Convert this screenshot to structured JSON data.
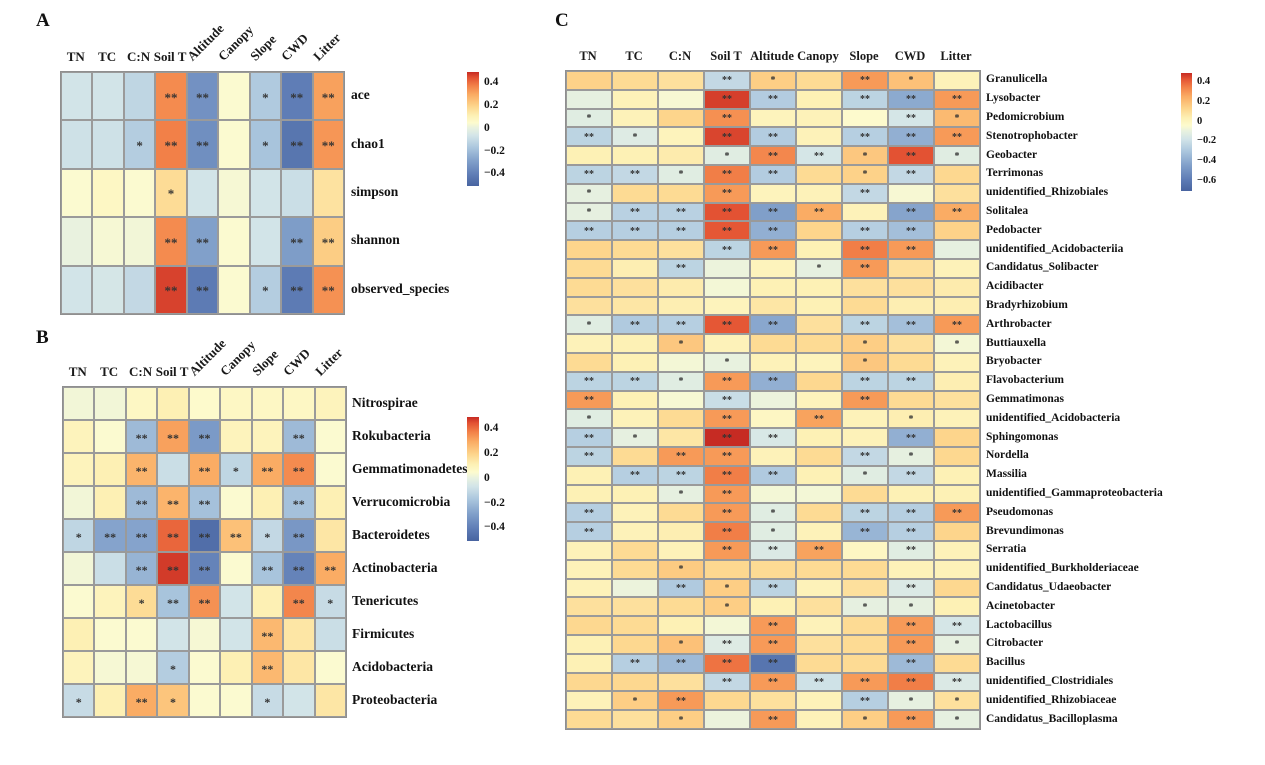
{
  "figure": {
    "background": "#ffffff",
    "grid_line_color": "#9a9a9a",
    "star_color": "#333333",
    "palette_stops": [
      [
        0.0,
        "#4864a0"
      ],
      [
        0.1,
        "#5f7db6"
      ],
      [
        0.22,
        "#81a0ca"
      ],
      [
        0.34,
        "#acc7de"
      ],
      [
        0.44,
        "#d2e4e8"
      ],
      [
        0.51,
        "#e9f2df"
      ],
      [
        0.555,
        "#fdfbce"
      ],
      [
        0.62,
        "#fdf0b4"
      ],
      [
        0.7,
        "#fdd58c"
      ],
      [
        0.8,
        "#faac64"
      ],
      [
        0.88,
        "#f28048"
      ],
      [
        0.95,
        "#e35233"
      ],
      [
        1.0,
        "#c62b23"
      ]
    ]
  },
  "chart_data": [
    {
      "type": "heatmap",
      "panel": "A",
      "columns": [
        "TN",
        "TC",
        "C:N",
        "Soil T",
        "Altitude",
        "Canopy",
        "Slope",
        "CWD",
        "Litter"
      ],
      "rows": [
        "ace",
        "chao1",
        "simpson",
        "shannon",
        "observed_species"
      ],
      "values": [
        [
          -0.06,
          -0.06,
          -0.11,
          0.36,
          -0.33,
          0.05,
          -0.15,
          -0.4,
          0.32
        ],
        [
          -0.07,
          -0.07,
          -0.14,
          0.38,
          -0.34,
          0.05,
          -0.17,
          -0.43,
          0.34
        ],
        [
          0.05,
          0.08,
          0.05,
          0.18,
          -0.06,
          0.04,
          -0.06,
          -0.08,
          0.16
        ],
        [
          0.01,
          0.04,
          0.03,
          0.36,
          -0.28,
          0.05,
          -0.06,
          -0.29,
          0.22
        ],
        [
          -0.06,
          -0.05,
          -0.1,
          0.47,
          -0.41,
          0.05,
          -0.14,
          -0.41,
          0.35
        ]
      ],
      "sig": [
        [
          "",
          "",
          "",
          "**",
          "**",
          "",
          "*",
          "**",
          "**"
        ],
        [
          "",
          "",
          "*",
          "**",
          "**",
          "",
          "*",
          "**",
          "**"
        ],
        [
          "",
          "",
          "",
          "*",
          "",
          "",
          "",
          "",
          ""
        ],
        [
          "",
          "",
          "",
          "**",
          "**",
          "",
          "",
          "**",
          "**"
        ],
        [
          "",
          "",
          "",
          "**",
          "**",
          "",
          "*",
          "**",
          "**"
        ]
      ],
      "colorbar": {
        "ticks": [
          "0.4",
          "0.2",
          "0",
          "−0.2",
          "−0.4"
        ],
        "tick_values": [
          0.4,
          0.2,
          0,
          -0.2,
          -0.4
        ],
        "domain": [
          -0.5,
          0.5
        ]
      }
    },
    {
      "type": "heatmap",
      "panel": "B",
      "columns": [
        "TN",
        "TC",
        "C:N",
        "Soil T",
        "Altitude",
        "Canopy",
        "Slope",
        "CWD",
        "Litter"
      ],
      "rows": [
        "Nitrospirae",
        "Rokubacteria",
        "Gemmatimonadetes",
        "Verrucomicrobia",
        "Bacteroidetes",
        "Actinobacteria",
        "Tenericutes",
        "Firmicutes",
        "Acidobacteria",
        "Proteobacteria"
      ],
      "values": [
        [
          0.03,
          0.03,
          0.08,
          0.12,
          0.06,
          0.08,
          0.08,
          0.08,
          0.1
        ],
        [
          0.1,
          0.05,
          -0.2,
          0.32,
          -0.3,
          0.1,
          0.1,
          -0.2,
          0.05
        ],
        [
          0.1,
          0.12,
          0.28,
          -0.08,
          0.3,
          -0.11,
          0.3,
          0.36,
          0.05
        ],
        [
          0.03,
          0.12,
          -0.2,
          0.28,
          -0.18,
          0.05,
          0.12,
          -0.18,
          0.12
        ],
        [
          -0.11,
          -0.27,
          -0.27,
          0.42,
          -0.46,
          0.25,
          -0.1,
          -0.31,
          0.15
        ],
        [
          0.03,
          -0.08,
          -0.22,
          0.48,
          -0.38,
          0.05,
          -0.17,
          -0.38,
          0.3
        ],
        [
          0.05,
          0.1,
          0.18,
          -0.17,
          0.35,
          -0.06,
          0.12,
          0.37,
          -0.09
        ],
        [
          0.12,
          0.05,
          0.05,
          -0.06,
          0.04,
          -0.06,
          0.27,
          0.15,
          -0.08
        ],
        [
          0.1,
          0.04,
          0.04,
          -0.14,
          0.05,
          0.12,
          0.27,
          0.15,
          0.05
        ],
        [
          -0.09,
          0.12,
          0.3,
          0.24,
          0.05,
          0.05,
          -0.09,
          -0.06,
          0.15
        ]
      ],
      "sig": [
        [
          "",
          "",
          "",
          "",
          "",
          "",
          "",
          "",
          ""
        ],
        [
          "",
          "",
          "**",
          "**",
          "**",
          "",
          "",
          "**",
          ""
        ],
        [
          "",
          "",
          "**",
          "",
          "**",
          "*",
          "**",
          "**",
          ""
        ],
        [
          "",
          "",
          "**",
          "**",
          "**",
          "",
          "",
          "**",
          ""
        ],
        [
          "*",
          "**",
          "**",
          "**",
          "**",
          "**",
          "*",
          "**",
          ""
        ],
        [
          "",
          "",
          "**",
          "**",
          "**",
          "",
          "**",
          "**",
          "**"
        ],
        [
          "",
          "",
          "*",
          "**",
          "**",
          "",
          "",
          "**",
          "*"
        ],
        [
          "",
          "",
          "",
          "",
          "",
          "",
          "**",
          "",
          ""
        ],
        [
          "",
          "",
          "",
          "*",
          "",
          "",
          "**",
          "",
          ""
        ],
        [
          "*",
          "",
          "**",
          "*",
          "",
          "",
          "*",
          "",
          ""
        ]
      ],
      "colorbar": {
        "ticks": [
          "0.4",
          "0.2",
          "0",
          "−0.2",
          "−0.4"
        ],
        "tick_values": [
          0.4,
          0.2,
          0,
          -0.2,
          -0.4
        ],
        "domain": [
          -0.5,
          0.5
        ]
      }
    },
    {
      "type": "heatmap",
      "panel": "C",
      "columns": [
        "TN",
        "TC",
        "C:N",
        "Soil T",
        "Altitude",
        "Canopy",
        "Slope",
        "CWD",
        "Litter"
      ],
      "rows": [
        "Granulicella",
        "Lysobacter",
        "Pedomicrobium",
        "Stenotrophobacter",
        "Geobacter",
        "Terrimonas",
        "unidentified_Rhizobiales",
        "Solitalea",
        "Pedobacter",
        "unidentified_Acidobacteriia",
        "Candidatus_Solibacter",
        "Acidibacter",
        "Bradyrhizobium",
        "Arthrobacter",
        "Buttiauxella",
        "Bryobacter",
        "Flavobacterium",
        "Gemmatimonas",
        "unidentified_Acidobacteria",
        "Sphingomonas",
        "Nordella",
        "Massilia",
        "unidentified_Gammaproteobacteria",
        "Pseudomonas",
        "Brevundimonas",
        "Serratia",
        "unidentified_Burkholderiaceae",
        "Candidatus_Udaeobacter",
        "Acinetobacter",
        "Lactobacillus",
        "Citrobacter",
        "Bacillus",
        "unidentified_Clostridiales",
        "unidentified_Rhizobiaceae",
        "Candidatus_Bacilloplasma"
      ],
      "values": [
        [
          0.15,
          0.12,
          0.1,
          -0.22,
          0.16,
          0.12,
          0.3,
          0.2,
          0.03
        ],
        [
          -0.1,
          0.03,
          -0.05,
          0.47,
          -0.27,
          0.04,
          -0.24,
          -0.4,
          0.3
        ],
        [
          -0.12,
          0.03,
          0.14,
          0.32,
          0.02,
          0.03,
          -0.03,
          -0.16,
          0.22
        ],
        [
          -0.24,
          -0.13,
          0.02,
          0.46,
          -0.27,
          0.03,
          -0.26,
          -0.38,
          0.3
        ],
        [
          0.04,
          0.04,
          0.06,
          -0.12,
          0.34,
          -0.16,
          0.18,
          0.44,
          -0.12
        ],
        [
          -0.24,
          -0.22,
          -0.12,
          0.36,
          -0.27,
          0.12,
          0.15,
          -0.22,
          0.13
        ],
        [
          -0.1,
          0.12,
          0.12,
          0.3,
          0.02,
          0.03,
          -0.22,
          -0.05,
          0.1
        ],
        [
          -0.1,
          -0.25,
          -0.25,
          0.44,
          -0.44,
          0.26,
          0.03,
          -0.42,
          0.26
        ],
        [
          -0.26,
          -0.26,
          -0.26,
          0.43,
          -0.38,
          0.14,
          -0.26,
          -0.32,
          0.15
        ],
        [
          0.14,
          0.12,
          0.1,
          -0.24,
          0.3,
          0.04,
          0.36,
          0.3,
          -0.1
        ],
        [
          0.12,
          0.05,
          -0.24,
          -0.08,
          0.02,
          -0.1,
          0.3,
          0.1,
          0.03
        ],
        [
          0.12,
          0.1,
          0.06,
          -0.06,
          0.04,
          0.04,
          0.1,
          0.1,
          0.06
        ],
        [
          0.1,
          0.08,
          0.05,
          0.02,
          0.08,
          0.04,
          0.12,
          0.05,
          0.05
        ],
        [
          -0.12,
          -0.28,
          -0.26,
          0.43,
          -0.41,
          0.1,
          -0.24,
          -0.32,
          0.3
        ],
        [
          0.03,
          0.04,
          0.18,
          0.03,
          0.12,
          0.12,
          0.16,
          0.1,
          -0.06
        ],
        [
          0.12,
          0.04,
          -0.06,
          -0.09,
          0.03,
          0.02,
          0.18,
          0.12,
          0.03
        ],
        [
          -0.24,
          -0.24,
          -0.12,
          0.3,
          -0.38,
          0.13,
          -0.24,
          -0.24,
          0.05
        ],
        [
          0.3,
          0.04,
          -0.05,
          -0.2,
          -0.08,
          0.02,
          0.3,
          0.12,
          0.1
        ],
        [
          -0.12,
          0.03,
          0.12,
          0.3,
          0.0,
          0.28,
          0.03,
          0.05,
          0.03
        ],
        [
          -0.26,
          -0.1,
          0.08,
          0.5,
          -0.15,
          0.04,
          0.03,
          -0.38,
          0.14
        ],
        [
          -0.24,
          0.12,
          0.3,
          0.3,
          0.03,
          0.12,
          -0.22,
          -0.1,
          0.13
        ],
        [
          0.04,
          -0.26,
          -0.24,
          0.36,
          -0.28,
          0.04,
          -0.12,
          -0.22,
          0.04
        ],
        [
          0.04,
          0.04,
          -0.1,
          0.3,
          -0.06,
          -0.06,
          0.12,
          0.04,
          0.04
        ],
        [
          -0.26,
          0.03,
          0.12,
          0.3,
          -0.12,
          0.12,
          -0.24,
          -0.26,
          0.3
        ],
        [
          -0.26,
          0.03,
          0.05,
          0.36,
          -0.12,
          0.03,
          -0.36,
          -0.26,
          0.14
        ],
        [
          0.03,
          0.12,
          0.03,
          0.3,
          -0.14,
          0.28,
          0.0,
          -0.12,
          0.03
        ],
        [
          0.03,
          0.12,
          0.17,
          0.13,
          0.12,
          0.12,
          0.12,
          0.03,
          0.03
        ],
        [
          0.03,
          -0.08,
          -0.28,
          0.16,
          -0.24,
          0.03,
          0.1,
          -0.14,
          0.13
        ],
        [
          0.1,
          0.1,
          0.12,
          0.16,
          0.04,
          0.1,
          -0.1,
          -0.1,
          0.04
        ],
        [
          0.13,
          0.12,
          0.04,
          -0.06,
          0.3,
          0.03,
          0.12,
          0.3,
          -0.16
        ],
        [
          0.04,
          0.13,
          0.2,
          -0.13,
          0.3,
          0.1,
          0.12,
          0.3,
          -0.1
        ],
        [
          0.04,
          -0.26,
          -0.34,
          0.38,
          -0.62,
          0.12,
          0.12,
          -0.34,
          0.12
        ],
        [
          0.13,
          0.13,
          0.1,
          -0.22,
          0.3,
          -0.18,
          0.3,
          0.36,
          -0.14
        ],
        [
          0.03,
          0.16,
          0.3,
          0.13,
          0.1,
          0.03,
          -0.26,
          -0.1,
          0.1
        ],
        [
          0.12,
          0.1,
          0.16,
          -0.08,
          0.3,
          0.03,
          0.16,
          0.3,
          -0.1
        ]
      ],
      "sig": [
        [
          "",
          "",
          "",
          "**",
          "*",
          "",
          "**",
          "*",
          ""
        ],
        [
          "",
          "",
          "",
          "**",
          "**",
          "",
          "**",
          "**",
          "**"
        ],
        [
          "*",
          "",
          "",
          "**",
          "",
          "",
          "",
          "**",
          "*"
        ],
        [
          "**",
          "*",
          "",
          "**",
          "**",
          "",
          "**",
          "**",
          "**"
        ],
        [
          "",
          "",
          "",
          "*",
          "**",
          "**",
          "*",
          "**",
          "*"
        ],
        [
          "**",
          "**",
          "*",
          "**",
          "**",
          "",
          "*",
          "**",
          ""
        ],
        [
          "*",
          "",
          "",
          "**",
          "",
          "",
          "**",
          "",
          ""
        ],
        [
          "*",
          "**",
          "**",
          "**",
          "**",
          "**",
          "",
          "**",
          "**"
        ],
        [
          "**",
          "**",
          "**",
          "**",
          "**",
          "",
          "**",
          "**",
          ""
        ],
        [
          "",
          "",
          "",
          "**",
          "**",
          "",
          "**",
          "**",
          ""
        ],
        [
          "",
          "",
          "**",
          "",
          "",
          "*",
          "**",
          "",
          ""
        ],
        [
          "",
          "",
          "",
          "",
          "",
          "",
          "",
          "",
          ""
        ],
        [
          "",
          "",
          "",
          "",
          "",
          "",
          "",
          "",
          ""
        ],
        [
          "*",
          "**",
          "**",
          "**",
          "**",
          "",
          "**",
          "**",
          "**"
        ],
        [
          "",
          "",
          "*",
          "",
          "",
          "",
          "*",
          "",
          "*"
        ],
        [
          "",
          "",
          "",
          "*",
          "",
          "",
          "*",
          "",
          ""
        ],
        [
          "**",
          "**",
          "*",
          "**",
          "**",
          "",
          "**",
          "**",
          ""
        ],
        [
          "**",
          "",
          "",
          "**",
          "",
          "",
          "**",
          "",
          ""
        ],
        [
          "*",
          "",
          "",
          "**",
          "",
          "**",
          "",
          "*",
          ""
        ],
        [
          "**",
          "*",
          "",
          "**",
          "**",
          "",
          "",
          "**",
          ""
        ],
        [
          "**",
          "",
          "**",
          "**",
          "",
          "",
          "**",
          "*",
          ""
        ],
        [
          "",
          "**",
          "**",
          "**",
          "**",
          "",
          "*",
          "**",
          ""
        ],
        [
          "",
          "",
          "*",
          "**",
          "",
          "",
          "",
          "",
          ""
        ],
        [
          "**",
          "",
          "",
          "**",
          "*",
          "",
          "**",
          "**",
          "**"
        ],
        [
          "**",
          "",
          "",
          "**",
          "*",
          "",
          "**",
          "**",
          ""
        ],
        [
          "",
          "",
          "",
          "**",
          "**",
          "**",
          "",
          "**",
          ""
        ],
        [
          "",
          "",
          "*",
          "",
          "",
          "",
          "",
          "",
          ""
        ],
        [
          "",
          "",
          "**",
          "*",
          "**",
          "",
          "",
          "**",
          ""
        ],
        [
          "",
          "",
          "",
          "*",
          "",
          "",
          "*",
          "*",
          ""
        ],
        [
          "",
          "",
          "",
          "",
          "**",
          "",
          "",
          "**",
          "**"
        ],
        [
          "",
          "",
          "*",
          "**",
          "**",
          "",
          "",
          "**",
          "*"
        ],
        [
          "",
          "**",
          "**",
          "**",
          "**",
          "",
          "",
          "**",
          ""
        ],
        [
          "",
          "",
          "",
          "**",
          "**",
          "**",
          "**",
          "**",
          "**"
        ],
        [
          "",
          "*",
          "**",
          "",
          "",
          "",
          "**",
          "*",
          "*"
        ],
        [
          "",
          "",
          "*",
          "",
          "**",
          "",
          "*",
          "**",
          "*"
        ]
      ],
      "colorbar": {
        "ticks": [
          "0.4",
          "0.2",
          "0",
          "−0.2",
          "−0.4",
          "−0.6"
        ],
        "tick_values": [
          0.4,
          0.2,
          0,
          -0.2,
          -0.4,
          -0.6
        ],
        "domain": [
          -0.7,
          0.5
        ]
      }
    }
  ]
}
